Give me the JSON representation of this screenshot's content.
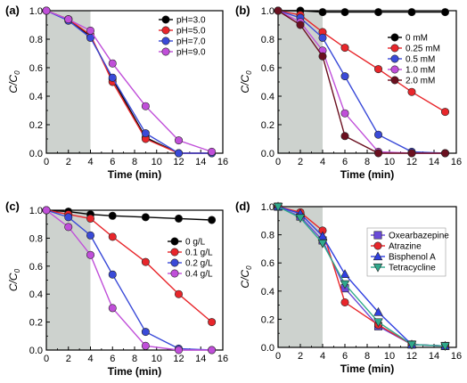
{
  "chart_data": [
    {
      "type": "line",
      "panel_label": "(a)",
      "xlabel": "Time (min)",
      "ylabel": "C/C",
      "ylabel_sub": "0",
      "xlim": [
        0,
        16
      ],
      "ylim": [
        0.0,
        1.0
      ],
      "xticks": [
        0,
        2,
        4,
        6,
        8,
        10,
        12,
        14,
        16
      ],
      "yticks": [
        0.0,
        0.2,
        0.4,
        0.6,
        0.8,
        1.0
      ],
      "shaded_region": [
        0,
        4
      ],
      "legend_position": "top-right",
      "series": [
        {
          "name": "pH=3.0",
          "color": "#000000",
          "marker": "circle",
          "x": [
            0,
            2,
            4,
            6,
            9,
            12,
            15
          ],
          "y": [
            1.0,
            0.94,
            0.82,
            0.52,
            0.11,
            0.0,
            0.0
          ]
        },
        {
          "name": "pH=5.0",
          "color": "#e8262b",
          "marker": "circle",
          "x": [
            0,
            2,
            4,
            6,
            9,
            12,
            15
          ],
          "y": [
            1.0,
            0.94,
            0.83,
            0.5,
            0.1,
            0.0,
            0.0
          ]
        },
        {
          "name": "pH=7.0",
          "color": "#3a4ad8",
          "marker": "circle",
          "x": [
            0,
            2,
            4,
            6,
            9,
            12,
            15
          ],
          "y": [
            1.0,
            0.93,
            0.81,
            0.53,
            0.14,
            0.0,
            0.0
          ]
        },
        {
          "name": "pH=9.0",
          "color": "#c04fd9",
          "marker": "circle",
          "x": [
            0,
            2,
            4,
            6,
            9,
            12,
            15
          ],
          "y": [
            1.0,
            0.94,
            0.86,
            0.63,
            0.33,
            0.09,
            0.01
          ]
        }
      ]
    },
    {
      "type": "line",
      "panel_label": "(b)",
      "xlabel": "Time (min)",
      "ylabel": "C/C",
      "ylabel_sub": "0",
      "xlim": [
        0,
        16
      ],
      "ylim": [
        0.0,
        1.0
      ],
      "xticks": [
        0,
        2,
        4,
        6,
        8,
        10,
        12,
        14,
        16
      ],
      "yticks": [
        0.0,
        0.2,
        0.4,
        0.6,
        0.8,
        1.0
      ],
      "shaded_region": [
        0,
        4
      ],
      "legend_position": "right",
      "series": [
        {
          "name": "0 mM",
          "color": "#000000",
          "marker": "circle",
          "x": [
            0,
            2,
            4,
            6,
            9,
            12,
            15
          ],
          "y": [
            1.0,
            1.0,
            0.99,
            0.99,
            0.99,
            0.99,
            0.99
          ]
        },
        {
          "name": "0.25 mM",
          "color": "#e8262b",
          "marker": "circle",
          "x": [
            0,
            2,
            4,
            6,
            9,
            12,
            15
          ],
          "y": [
            1.0,
            0.97,
            0.85,
            0.74,
            0.59,
            0.43,
            0.29
          ]
        },
        {
          "name": "0.5 mM",
          "color": "#3a4ad8",
          "marker": "circle",
          "x": [
            0,
            2,
            4,
            6,
            9,
            12,
            15
          ],
          "y": [
            1.0,
            0.95,
            0.81,
            0.54,
            0.13,
            0.01,
            0.0
          ]
        },
        {
          "name": "1.0 mM",
          "color": "#c04fd9",
          "marker": "circle",
          "x": [
            0,
            2,
            4,
            6,
            9,
            12,
            15
          ],
          "y": [
            1.0,
            0.92,
            0.72,
            0.28,
            0.01,
            0.0,
            0.0
          ]
        },
        {
          "name": "2.0 mM",
          "color": "#6b1020",
          "marker": "circle",
          "x": [
            0,
            2,
            4,
            6,
            9,
            12,
            15
          ],
          "y": [
            1.0,
            0.9,
            0.68,
            0.12,
            0.0,
            0.0,
            0.0
          ]
        }
      ]
    },
    {
      "type": "line",
      "panel_label": "(c)",
      "xlabel": "Time (min)",
      "ylabel": "C/C",
      "ylabel_sub": "0",
      "xlim": [
        0,
        16
      ],
      "ylim": [
        0.0,
        1.0
      ],
      "xticks": [
        0,
        2,
        4,
        6,
        8,
        10,
        12,
        14,
        16
      ],
      "yticks": [
        0.0,
        0.2,
        0.4,
        0.6,
        0.8,
        1.0
      ],
      "shaded_region": [
        0,
        4
      ],
      "legend_position": "right",
      "series": [
        {
          "name": "0 g/L",
          "color": "#000000",
          "marker": "circle",
          "x": [
            0,
            2,
            4,
            6,
            9,
            12,
            15
          ],
          "y": [
            1.0,
            0.99,
            0.97,
            0.96,
            0.95,
            0.94,
            0.93
          ]
        },
        {
          "name": "0.1 g/L",
          "color": "#e8262b",
          "marker": "circle",
          "x": [
            0,
            2,
            4,
            6,
            9,
            12,
            15
          ],
          "y": [
            1.0,
            0.97,
            0.94,
            0.81,
            0.63,
            0.4,
            0.2
          ]
        },
        {
          "name": "0.2 g/L",
          "color": "#3a4ad8",
          "marker": "circle",
          "x": [
            0,
            2,
            4,
            6,
            9,
            12,
            15
          ],
          "y": [
            1.0,
            0.95,
            0.82,
            0.54,
            0.13,
            0.01,
            0.0
          ]
        },
        {
          "name": "0.4 g/L",
          "color": "#c04fd9",
          "marker": "circle",
          "x": [
            0,
            2,
            4,
            6,
            9,
            12,
            15
          ],
          "y": [
            1.0,
            0.88,
            0.68,
            0.3,
            0.03,
            0.0,
            0.0
          ]
        }
      ]
    },
    {
      "type": "line",
      "panel_label": "(d)",
      "xlabel": "Time (min)",
      "ylabel": "C/C",
      "ylabel_sub": "0",
      "xlim": [
        0,
        16
      ],
      "ylim": [
        0.0,
        1.0
      ],
      "xticks": [
        0,
        2,
        4,
        6,
        8,
        10,
        12,
        14,
        16
      ],
      "yticks": [
        0.0,
        0.2,
        0.4,
        0.6,
        0.8,
        1.0
      ],
      "shaded_region": [
        0,
        4
      ],
      "legend_position": "top-right",
      "series": [
        {
          "name": "Oxearbazepine",
          "color": "#6a4ad8",
          "marker": "square",
          "x": [
            0,
            2,
            4,
            6,
            9,
            12,
            15
          ],
          "y": [
            1.0,
            0.93,
            0.76,
            0.42,
            0.15,
            0.02,
            0.01
          ]
        },
        {
          "name": "Atrazine",
          "color": "#e8262b",
          "marker": "circle",
          "x": [
            0,
            2,
            4,
            6,
            9,
            12,
            15
          ],
          "y": [
            1.0,
            0.96,
            0.83,
            0.32,
            0.16,
            0.02,
            0.01
          ]
        },
        {
          "name": "Bisphenol A",
          "color": "#2f3fe0",
          "marker": "triangle-up",
          "x": [
            0,
            2,
            4,
            6,
            9,
            12,
            15
          ],
          "y": [
            1.0,
            0.95,
            0.79,
            0.52,
            0.25,
            0.02,
            0.01
          ]
        },
        {
          "name": "Tetracycline",
          "color": "#2fa98c",
          "marker": "triangle-down",
          "x": [
            0,
            2,
            4,
            6,
            9,
            12,
            15
          ],
          "y": [
            1.0,
            0.92,
            0.74,
            0.45,
            0.18,
            0.02,
            0.01
          ]
        }
      ]
    }
  ]
}
